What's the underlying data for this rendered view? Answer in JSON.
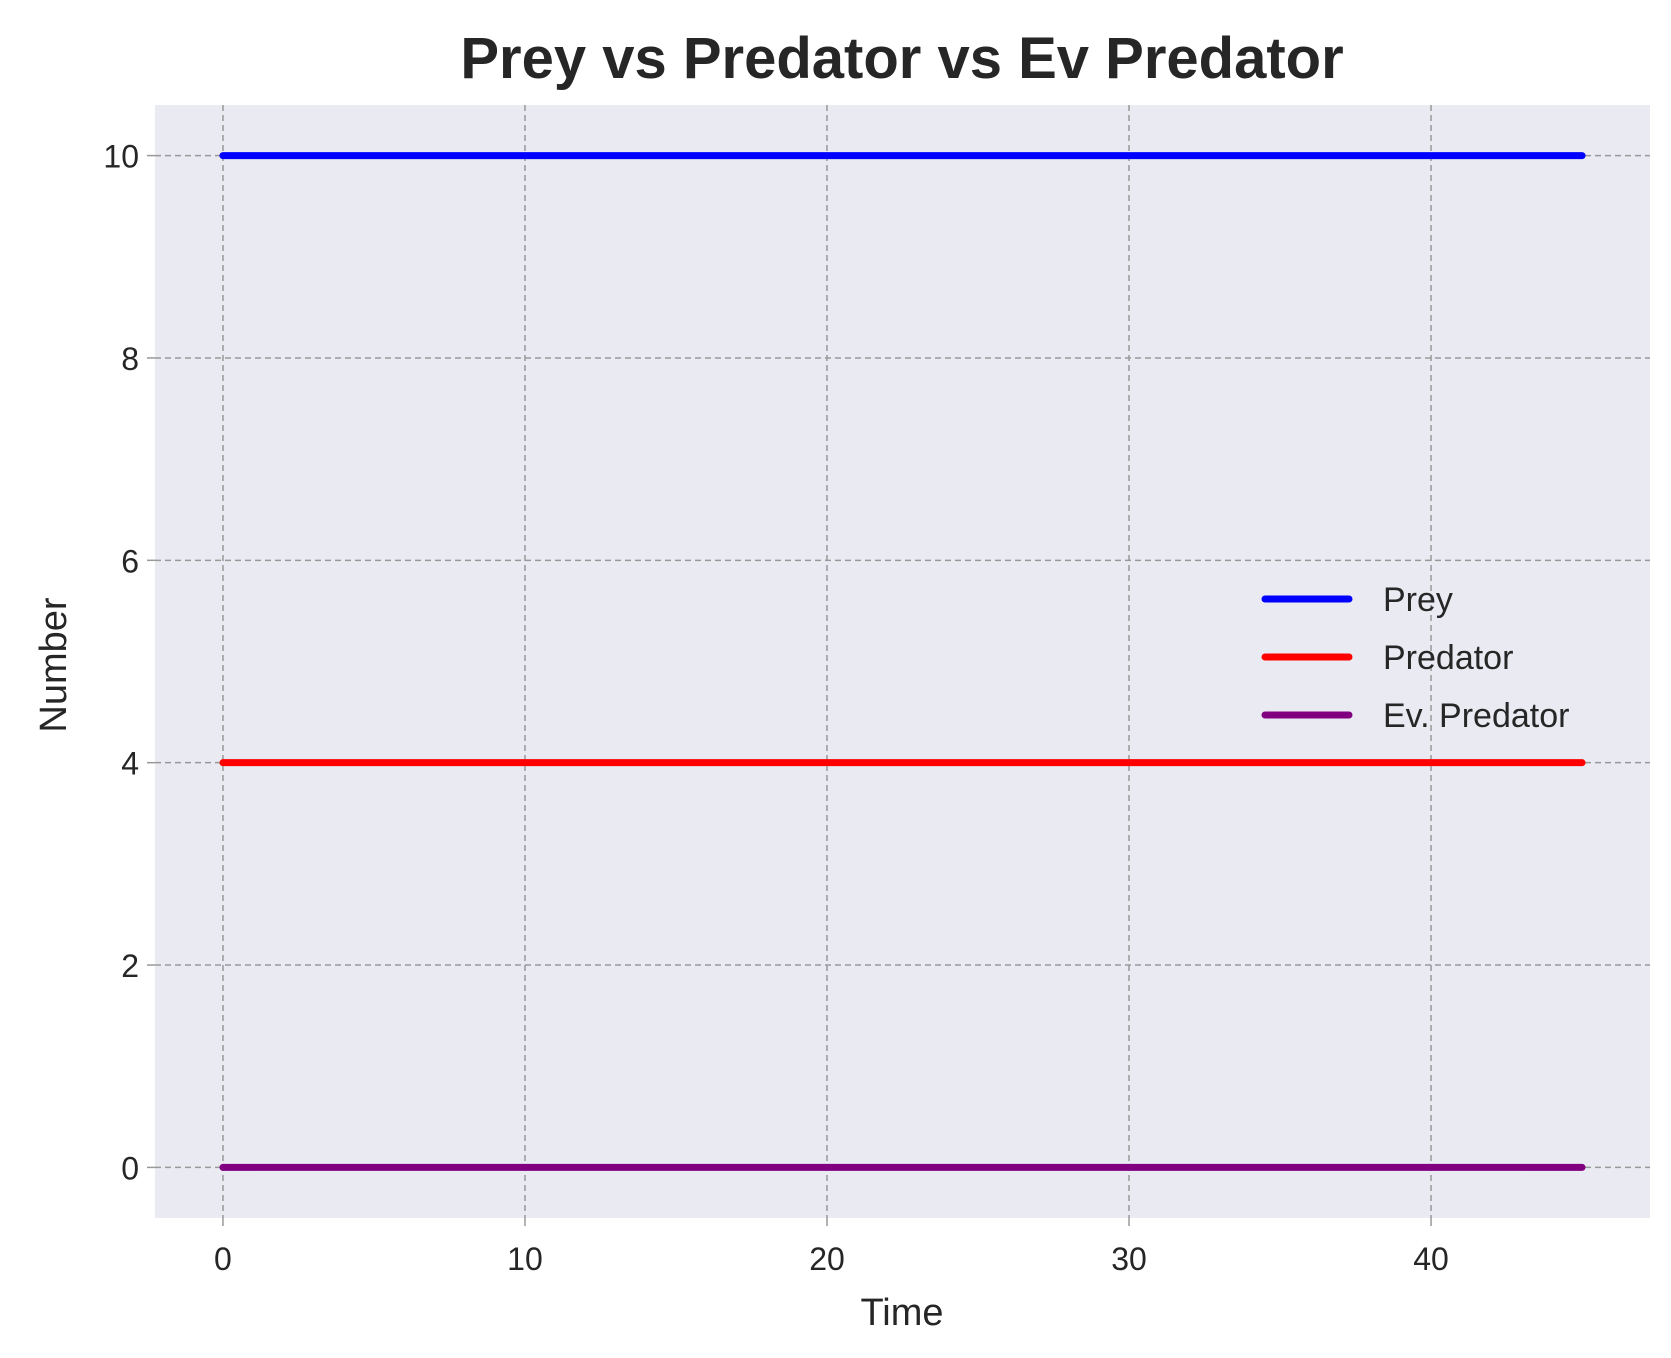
{
  "chart_data": {
    "type": "line",
    "title": "Prey vs Predator vs Ev Predator",
    "xlabel": "Time",
    "ylabel": "Number",
    "xlim": [
      -2.25,
      47.25
    ],
    "ylim": [
      -0.5,
      10.5
    ],
    "xticks": [
      0,
      10,
      20,
      30,
      40
    ],
    "yticks": [
      0,
      2,
      4,
      6,
      8,
      10
    ],
    "grid": true,
    "legend_position": "center-right",
    "background": "#eaeaf2",
    "series": [
      {
        "name": "Prey",
        "color": "#0000ff",
        "x": [
          0,
          45
        ],
        "y": [
          10,
          10
        ]
      },
      {
        "name": "Predator",
        "color": "#ff0000",
        "x": [
          0,
          45
        ],
        "y": [
          4,
          4
        ]
      },
      {
        "name": "Ev. Predator",
        "color": "#800080",
        "x": [
          0,
          45
        ],
        "y": [
          0,
          0
        ]
      }
    ]
  }
}
